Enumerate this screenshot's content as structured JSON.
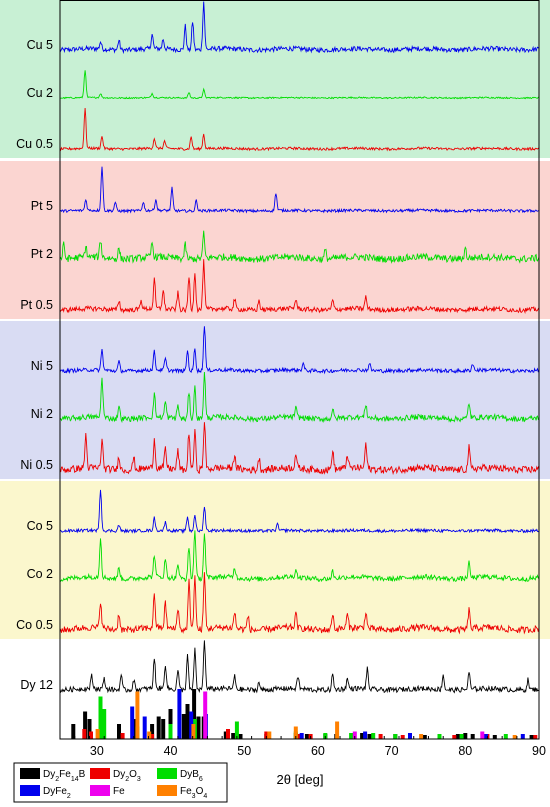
{
  "chart_data": {
    "type": "line",
    "xlabel": "2θ [deg]",
    "xlim": [
      25,
      90
    ],
    "x_ticks": [
      30,
      40,
      50,
      60,
      70,
      80,
      90
    ],
    "bands": [
      {
        "name": "Cu",
        "color": "#c8f0d4",
        "samples": [
          "Cu 5",
          "Cu 2",
          "Cu 0.5"
        ]
      },
      {
        "name": "Pt",
        "color": "#fbd5d1",
        "samples": [
          "Pt 5",
          "Pt 2",
          "Pt 0.5"
        ]
      },
      {
        "name": "Ni",
        "color": "#d9dcf3",
        "samples": [
          "Ni 5",
          "Ni 2",
          "Ni 0.5"
        ]
      },
      {
        "name": "Co",
        "color": "#fbf7cd",
        "samples": [
          "Co 5",
          "Co 2",
          "Co 0.5"
        ]
      }
    ],
    "series": [
      {
        "name": "Cu 5",
        "color": "#0000ee",
        "peaks": [
          [
            30.5,
            0.15
          ],
          [
            33.0,
            0.2
          ],
          [
            37.5,
            0.3
          ],
          [
            39.0,
            0.2
          ],
          [
            42.0,
            0.5
          ],
          [
            43.0,
            0.6
          ],
          [
            44.5,
            1.0
          ]
        ],
        "noise": 0.1,
        "bump": 0.1
      },
      {
        "name": "Cu 2",
        "color": "#00dd00",
        "peaks": [
          [
            28.4,
            1.0
          ],
          [
            30.5,
            0.15
          ],
          [
            37.5,
            0.15
          ],
          [
            42.5,
            0.2
          ],
          [
            44.5,
            0.3
          ]
        ],
        "noise": 0.05,
        "bump": 0.05
      },
      {
        "name": "Cu 0.5",
        "color": "#ee0000",
        "peaks": [
          [
            28.4,
            0.8
          ],
          [
            30.7,
            0.25
          ],
          [
            37.8,
            0.2
          ],
          [
            39.2,
            0.15
          ],
          [
            42.8,
            0.25
          ],
          [
            44.5,
            0.3
          ]
        ],
        "noise": 0.05,
        "bump": 0.05
      },
      {
        "name": "Pt 5",
        "color": "#0000ee",
        "peaks": [
          [
            28.5,
            0.25
          ],
          [
            30.7,
            1.0
          ],
          [
            32.5,
            0.2
          ],
          [
            36.3,
            0.2
          ],
          [
            38.0,
            0.25
          ],
          [
            40.2,
            0.5
          ],
          [
            43.5,
            0.25
          ],
          [
            54.3,
            0.4
          ]
        ],
        "noise": 0.06,
        "bump": 0.05
      },
      {
        "name": "Pt 2",
        "color": "#00dd00",
        "peaks": [
          [
            25.5,
            0.4
          ],
          [
            28.5,
            0.3
          ],
          [
            30.5,
            0.5
          ],
          [
            33.0,
            0.3
          ],
          [
            37.5,
            0.4
          ],
          [
            42.0,
            0.4
          ],
          [
            44.5,
            0.7
          ],
          [
            61.0,
            0.25
          ],
          [
            80.0,
            0.3
          ]
        ],
        "noise": 0.2,
        "bump": 0.2
      },
      {
        "name": "Pt 0.5",
        "color": "#ee0000",
        "peaks": [
          [
            33.0,
            0.2
          ],
          [
            36.0,
            0.2
          ],
          [
            37.8,
            0.6
          ],
          [
            39.0,
            0.4
          ],
          [
            41.0,
            0.35
          ],
          [
            42.5,
            0.7
          ],
          [
            43.3,
            0.8
          ],
          [
            44.5,
            1.0
          ],
          [
            48.7,
            0.2
          ],
          [
            52.0,
            0.2
          ],
          [
            57.0,
            0.2
          ],
          [
            62.0,
            0.2
          ],
          [
            66.5,
            0.25
          ]
        ],
        "noise": 0.1,
        "bump": 0.1
      },
      {
        "name": "Ni 5",
        "color": "#0000ee",
        "peaks": [
          [
            30.7,
            0.45
          ],
          [
            33.0,
            0.2
          ],
          [
            37.8,
            0.4
          ],
          [
            39.3,
            0.25
          ],
          [
            42.3,
            0.45
          ],
          [
            43.3,
            0.5
          ],
          [
            44.6,
            1.0
          ],
          [
            58.0,
            0.15
          ],
          [
            67.0,
            0.15
          ],
          [
            81.0,
            0.15
          ]
        ],
        "noise": 0.08,
        "bump": 0.08
      },
      {
        "name": "Ni 2",
        "color": "#00dd00",
        "peaks": [
          [
            30.7,
            0.9
          ],
          [
            33.0,
            0.3
          ],
          [
            37.8,
            0.5
          ],
          [
            39.3,
            0.35
          ],
          [
            41.0,
            0.3
          ],
          [
            42.5,
            0.6
          ],
          [
            43.3,
            0.7
          ],
          [
            44.6,
            1.0
          ],
          [
            57.0,
            0.2
          ],
          [
            62.0,
            0.2
          ],
          [
            66.5,
            0.3
          ],
          [
            80.5,
            0.35
          ]
        ],
        "noise": 0.12,
        "bump": 0.15
      },
      {
        "name": "Ni 0.5",
        "color": "#ee0000",
        "peaks": [
          [
            28.5,
            0.7
          ],
          [
            30.7,
            0.6
          ],
          [
            33.0,
            0.3
          ],
          [
            35.0,
            0.25
          ],
          [
            37.8,
            0.6
          ],
          [
            39.3,
            0.4
          ],
          [
            41.0,
            0.4
          ],
          [
            42.5,
            0.8
          ],
          [
            43.3,
            0.8
          ],
          [
            44.6,
            1.0
          ],
          [
            48.7,
            0.3
          ],
          [
            52.0,
            0.25
          ],
          [
            57.0,
            0.3
          ],
          [
            62.0,
            0.4
          ],
          [
            64.0,
            0.3
          ],
          [
            66.5,
            0.5
          ],
          [
            80.5,
            0.45
          ]
        ],
        "noise": 0.15,
        "bump": 0.15
      },
      {
        "name": "Co 5",
        "color": "#0000ee",
        "peaks": [
          [
            30.5,
            1.0
          ],
          [
            33.0,
            0.15
          ],
          [
            37.8,
            0.3
          ],
          [
            39.3,
            0.2
          ],
          [
            42.3,
            0.35
          ],
          [
            43.3,
            0.4
          ],
          [
            44.6,
            0.6
          ],
          [
            54.5,
            0.15
          ]
        ],
        "noise": 0.07,
        "bump": 0.05
      },
      {
        "name": "Co 2",
        "color": "#00dd00",
        "peaks": [
          [
            30.5,
            0.8
          ],
          [
            33.0,
            0.25
          ],
          [
            37.8,
            0.45
          ],
          [
            39.3,
            0.35
          ],
          [
            41.0,
            0.3
          ],
          [
            42.5,
            0.65
          ],
          [
            43.3,
            1.0
          ],
          [
            44.6,
            0.9
          ],
          [
            48.7,
            0.2
          ],
          [
            57.0,
            0.15
          ],
          [
            62.0,
            0.15
          ],
          [
            80.5,
            0.3
          ]
        ],
        "noise": 0.1,
        "bump": 0.15
      },
      {
        "name": "Co 0.5",
        "color": "#ee0000",
        "peaks": [
          [
            30.5,
            0.5
          ],
          [
            33.0,
            0.3
          ],
          [
            37.8,
            0.6
          ],
          [
            39.3,
            0.45
          ],
          [
            41.0,
            0.4
          ],
          [
            42.5,
            0.9
          ],
          [
            43.3,
            1.0
          ],
          [
            44.6,
            1.0
          ],
          [
            48.7,
            0.3
          ],
          [
            50.5,
            0.25
          ],
          [
            57.0,
            0.25
          ],
          [
            62.0,
            0.3
          ],
          [
            64.0,
            0.25
          ],
          [
            66.5,
            0.3
          ],
          [
            80.5,
            0.35
          ]
        ],
        "noise": 0.12,
        "bump": 0.15
      },
      {
        "name": "Dy 12",
        "color": "#000000",
        "peaks": [
          [
            29.3,
            0.25
          ],
          [
            31.0,
            0.2
          ],
          [
            33.3,
            0.3
          ],
          [
            35.0,
            0.2
          ],
          [
            37.8,
            0.6
          ],
          [
            39.3,
            0.5
          ],
          [
            41.0,
            0.4
          ],
          [
            42.3,
            0.7
          ],
          [
            43.3,
            0.8
          ],
          [
            44.6,
            1.0
          ],
          [
            48.7,
            0.25
          ],
          [
            52.0,
            0.15
          ],
          [
            57.3,
            0.25
          ],
          [
            62.0,
            0.3
          ],
          [
            64.0,
            0.2
          ],
          [
            66.7,
            0.4
          ],
          [
            77.0,
            0.3
          ],
          [
            80.5,
            0.35
          ],
          [
            88.5,
            0.2
          ]
        ],
        "noise": 0.1,
        "bump": 0.1
      }
    ],
    "reference_lines": [
      {
        "name": "Dy2Fe14B",
        "color": "#000000",
        "positions": [
          [
            26.8,
            0.3
          ],
          [
            28.4,
            0.55
          ],
          [
            29.0,
            0.4
          ],
          [
            33.0,
            0.3
          ],
          [
            35.0,
            0.4
          ],
          [
            37.5,
            0.3
          ],
          [
            38.4,
            0.45
          ],
          [
            39.0,
            0.4
          ],
          [
            40.0,
            0.6
          ],
          [
            41.8,
            0.5
          ],
          [
            42.3,
            0.7
          ],
          [
            43.2,
            1.0
          ],
          [
            43.8,
            0.45
          ],
          [
            44.5,
            0.45
          ],
          [
            47.5,
            0.15
          ],
          [
            48.5,
            0.12
          ],
          [
            49.5,
            0.1
          ],
          [
            53.0,
            0.1
          ],
          [
            57.0,
            0.12
          ],
          [
            58.5,
            0.1
          ],
          [
            61.0,
            0.1
          ],
          [
            62.5,
            0.1
          ],
          [
            66.0,
            0.12
          ],
          [
            67.0,
            0.1
          ],
          [
            70.5,
            0.1
          ],
          [
            74.5,
            0.08
          ],
          [
            79.0,
            0.1
          ],
          [
            80.0,
            0.12
          ],
          [
            81.0,
            0.1
          ],
          [
            84.0,
            0.08
          ],
          [
            89.0,
            0.08
          ]
        ]
      },
      {
        "name": "Dy2O3",
        "color": "#ee0000",
        "positions": [
          [
            28.3,
            0.2
          ],
          [
            29.2,
            0.15
          ],
          [
            33.5,
            0.12
          ],
          [
            37.5,
            0.1
          ],
          [
            47.8,
            0.2
          ],
          [
            53.0,
            0.15
          ],
          [
            57.5,
            0.1
          ],
          [
            59.0,
            0.1
          ],
          [
            68.5,
            0.1
          ],
          [
            71.5,
            0.08
          ],
          [
            78.5,
            0.08
          ],
          [
            83.0,
            0.1
          ],
          [
            89.5,
            0.08
          ]
        ]
      },
      {
        "name": "DyB6",
        "color": "#00dd00",
        "positions": [
          [
            30.5,
            0.85
          ],
          [
            31.0,
            0.6
          ],
          [
            35.5,
            0.25
          ],
          [
            40.0,
            0.3
          ],
          [
            43.3,
            0.4
          ],
          [
            49.0,
            0.35
          ],
          [
            57.0,
            0.15
          ],
          [
            61.0,
            0.12
          ],
          [
            64.5,
            0.12
          ],
          [
            67.5,
            0.12
          ],
          [
            70.5,
            0.1
          ],
          [
            76.5,
            0.1
          ],
          [
            79.5,
            0.1
          ],
          [
            85.5,
            0.1
          ]
        ]
      },
      {
        "name": "DyFe2",
        "color": "#0000ee",
        "positions": [
          [
            34.8,
            0.65
          ],
          [
            36.5,
            0.45
          ],
          [
            41.2,
            1.0
          ],
          [
            42.8,
            0.55
          ],
          [
            44.8,
            0.5
          ],
          [
            57.8,
            0.12
          ],
          [
            66.4,
            0.15
          ],
          [
            72.5,
            0.12
          ],
          [
            82.8,
            0.1
          ],
          [
            87.8,
            0.1
          ]
        ]
      },
      {
        "name": "Fe",
        "color": "#ee00ee",
        "positions": [
          [
            44.7,
            0.95
          ],
          [
            65.0,
            0.15
          ],
          [
            82.3,
            0.15
          ]
        ]
      },
      {
        "name": "Fe3O4",
        "color": "#ff8000",
        "positions": [
          [
            30.1,
            0.2
          ],
          [
            35.5,
            0.95
          ],
          [
            37.1,
            0.15
          ],
          [
            43.1,
            0.3
          ],
          [
            53.4,
            0.15
          ],
          [
            57.0,
            0.25
          ],
          [
            62.6,
            0.35
          ],
          [
            74.0,
            0.1
          ],
          [
            86.7,
            0.08
          ]
        ]
      }
    ],
    "legend": {
      "placement": "bottom-left",
      "entries": [
        {
          "base": "Dy",
          "s1": "2",
          "mid": "Fe",
          "s2": "14",
          "tail": "B",
          "color": "#000000"
        },
        {
          "base": "Dy",
          "s1": "2",
          "mid": "O",
          "s2": "3",
          "tail": "",
          "color": "#ee0000"
        },
        {
          "base": "DyB",
          "s1": "6",
          "mid": "",
          "s2": "",
          "tail": "",
          "color": "#00dd00"
        },
        {
          "base": "DyFe",
          "s1": "2",
          "mid": "",
          "s2": "",
          "tail": "",
          "color": "#0000ee"
        },
        {
          "base": "Fe",
          "s1": "",
          "mid": "",
          "s2": "",
          "tail": "",
          "color": "#ee00ee"
        },
        {
          "base": "Fe",
          "s1": "3",
          "mid": "O",
          "s2": "4",
          "tail": "",
          "color": "#ff8000"
        }
      ]
    },
    "grid": false
  }
}
